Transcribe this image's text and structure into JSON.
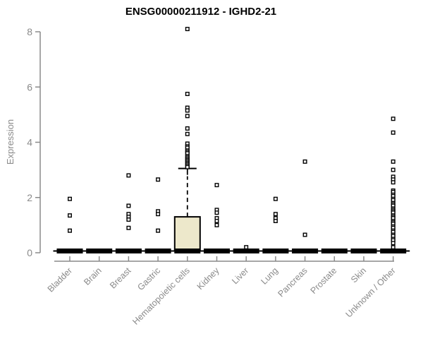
{
  "header": {
    "title": "ENSG00000211912 - IGHD2-21"
  },
  "chart_data": {
    "type": "boxplot",
    "title": "ENSG00000211912 - IGHD2-21",
    "xlabel": "",
    "ylabel": "Expression",
    "ylim": [
      0,
      8
    ],
    "yticks": [
      0,
      2,
      4,
      6,
      8
    ],
    "grid": "off",
    "legend": "none",
    "axis_color": "#8A8A8A",
    "text_color": "#8A8A8A",
    "box_fill_color": "#EDE8CB",
    "box_stroke_color": "#000000",
    "outlier_marker": "open-square",
    "categories": [
      "Bladder",
      "Brain",
      "Breast",
      "Gastric",
      "Hematopoietic cells",
      "Kidney",
      "Liver",
      "Lung",
      "Pancreas",
      "Prostate",
      "Skin",
      "Unknown / Other"
    ],
    "boxes": [
      {
        "category": "Bladder",
        "whisker_low": 0,
        "q1": 0,
        "median": 0,
        "q3": 0,
        "whisker_high": 0,
        "outliers": [
          1.95,
          1.35,
          0.8
        ]
      },
      {
        "category": "Brain",
        "whisker_low": 0,
        "q1": 0,
        "median": 0,
        "q3": 0,
        "whisker_high": 0,
        "outliers": []
      },
      {
        "category": "Breast",
        "whisker_low": 0,
        "q1": 0,
        "median": 0,
        "q3": 0,
        "whisker_high": 0,
        "outliers": [
          2.8,
          1.7,
          1.4,
          1.3,
          1.2,
          0.9
        ]
      },
      {
        "category": "Gastric",
        "whisker_low": 0,
        "q1": 0,
        "median": 0,
        "q3": 0,
        "whisker_high": 0,
        "outliers": [
          2.65,
          1.5,
          1.4,
          0.8
        ]
      },
      {
        "category": "Hematopoietic cells",
        "whisker_low": 0,
        "q1": 0,
        "median": 0,
        "q3": 1.3,
        "whisker_high": 3.05,
        "outliers": [
          8.1,
          5.75,
          5.25,
          5.15,
          4.95,
          4.5,
          4.3,
          3.95,
          3.85,
          3.8,
          3.7,
          3.65,
          3.6,
          3.5,
          3.45,
          3.4,
          3.35,
          3.3,
          3.25,
          3.2,
          3.15,
          3.1
        ]
      },
      {
        "category": "Kidney",
        "whisker_low": 0,
        "q1": 0,
        "median": 0,
        "q3": 0,
        "whisker_high": 0,
        "outliers": [
          2.45,
          1.55,
          1.45,
          1.25,
          1.15,
          1.0
        ]
      },
      {
        "category": "Liver",
        "whisker_low": 0,
        "q1": 0,
        "median": 0,
        "q3": 0,
        "whisker_high": 0,
        "outliers": [
          0.2
        ]
      },
      {
        "category": "Lung",
        "whisker_low": 0,
        "q1": 0,
        "median": 0,
        "q3": 0,
        "whisker_high": 0,
        "outliers": [
          1.95,
          1.4,
          1.25,
          1.15
        ]
      },
      {
        "category": "Pancreas",
        "whisker_low": 0,
        "q1": 0,
        "median": 0,
        "q3": 0,
        "whisker_high": 0,
        "outliers": [
          3.3,
          0.65
        ]
      },
      {
        "category": "Prostate",
        "whisker_low": 0,
        "q1": 0,
        "median": 0,
        "q3": 0,
        "whisker_high": 0,
        "outliers": []
      },
      {
        "category": "Skin",
        "whisker_low": 0,
        "q1": 0,
        "median": 0,
        "q3": 0,
        "whisker_high": 0,
        "outliers": []
      },
      {
        "category": "Unknown / Other",
        "whisker_low": 0,
        "q1": 0,
        "median": 0,
        "q3": 0,
        "whisker_high": 0,
        "outliers": [
          4.85,
          4.35,
          3.3,
          3.0,
          2.75,
          2.65,
          2.55,
          2.25,
          2.2,
          2.1,
          2.05,
          1.95,
          1.9,
          1.8,
          1.75,
          1.7,
          1.6,
          1.55,
          1.5,
          1.45,
          1.35,
          1.3,
          1.25,
          1.15,
          1.1,
          1.05,
          0.95,
          0.9,
          0.8,
          0.75,
          0.65,
          0.6,
          0.5,
          0.45,
          0.35,
          0.2
        ]
      }
    ]
  }
}
